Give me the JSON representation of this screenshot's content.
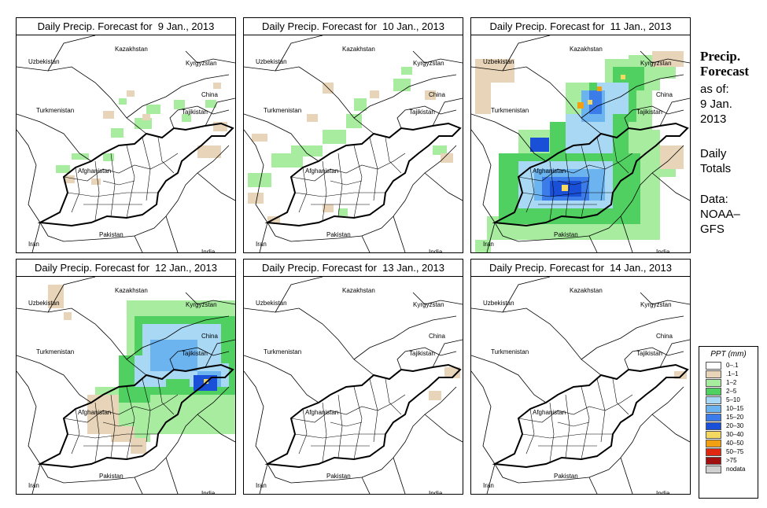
{
  "panels": [
    {
      "title": "Daily Precip. Forecast for  9 Jan., 2013",
      "intensity": [
        {
          "cls": "1-2",
          "cells": [
            [
              50,
              165,
              18,
              10
            ],
            [
              70,
              150,
              22,
              8
            ],
            [
              110,
              150,
              14,
              10
            ],
            [
              120,
              118,
              16,
              12
            ],
            [
              150,
              105,
              22,
              14
            ],
            [
              165,
              88,
              18,
              12
            ],
            [
              200,
              82,
              14,
              12
            ],
            [
              210,
              100,
              12,
              10
            ],
            [
              240,
              82,
              14,
              10
            ],
            [
              130,
              80,
              10,
              8
            ]
          ]
        },
        {
          "cls": "0.1-1",
          "cells": [
            [
              60,
              178,
              14,
              10
            ],
            [
              95,
              182,
              12,
              8
            ],
            [
              110,
              96,
              14,
              10
            ],
            [
              140,
              70,
              10,
              8
            ],
            [
              230,
              140,
              30,
              16
            ],
            [
              250,
              110,
              18,
              12
            ],
            [
              160,
              100,
              10,
              8
            ],
            [
              250,
              60,
              10,
              8
            ]
          ]
        }
      ]
    },
    {
      "title": "Daily Precip. Forecast for  10 Jan., 2013",
      "intensity": [
        {
          "cls": "1-2",
          "cells": [
            [
              5,
              175,
              30,
              18
            ],
            [
              35,
              150,
              40,
              18
            ],
            [
              60,
              140,
              40,
              14
            ],
            [
              100,
              120,
              30,
              18
            ],
            [
              130,
              100,
              20,
              18
            ],
            [
              140,
              80,
              16,
              16
            ],
            [
              190,
              55,
              22,
              16
            ],
            [
              200,
              40,
              14,
              10
            ],
            [
              240,
              140,
              18,
              12
            ],
            [
              120,
              220,
              12,
              10
            ]
          ]
        },
        {
          "cls": "0.1-1",
          "cells": [
            [
              5,
              200,
              20,
              14
            ],
            [
              10,
              125,
              20,
              10
            ],
            [
              80,
              100,
              14,
              10
            ],
            [
              100,
              60,
              14,
              14
            ],
            [
              160,
              70,
              12,
              10
            ],
            [
              230,
              70,
              14,
              12
            ],
            [
              250,
              150,
              16,
              12
            ],
            [
              30,
              230,
              16,
              10
            ],
            [
              100,
              215,
              14,
              10
            ]
          ]
        }
      ]
    },
    {
      "title": "Daily Precip. Forecast for  11 Jan., 2013",
      "intensity": [
        {
          "cls": "1-2",
          "cells": [
            [
              5,
              260,
              20,
              30
            ],
            [
              20,
              230,
              30,
              30
            ],
            [
              40,
              180,
              200,
              80
            ],
            [
              60,
              120,
              180,
              60
            ],
            [
              120,
              60,
              110,
              60
            ],
            [
              170,
              30,
              70,
              40
            ],
            [
              200,
              25,
              60,
              30
            ],
            [
              210,
              150,
              50,
              30
            ]
          ]
        },
        {
          "cls": "2-5",
          "cells": [
            [
              35,
              150,
              180,
              90
            ],
            [
              100,
              110,
              100,
              50
            ],
            [
              150,
              60,
              60,
              50
            ],
            [
              180,
              40,
              40,
              30
            ]
          ]
        },
        {
          "cls": "5-10",
          "cells": [
            [
              60,
              160,
              120,
              60
            ],
            [
              120,
              100,
              60,
              50
            ],
            [
              160,
              60,
              40,
              40
            ]
          ]
        },
        {
          "cls": "10-15",
          "cells": [
            [
              80,
              170,
              90,
              40
            ],
            [
              140,
              70,
              30,
              40
            ]
          ]
        },
        {
          "cls": "15-20",
          "cells": [
            [
              90,
              180,
              60,
              30
            ],
            [
              150,
              70,
              16,
              30
            ]
          ]
        },
        {
          "cls": "20-30",
          "cells": [
            [
              100,
              185,
              40,
              20
            ],
            [
              75,
              130,
              24,
              18
            ]
          ]
        },
        {
          "cls": "30-40",
          "cells": [
            [
              115,
              190,
              8,
              8
            ],
            [
              148,
              82,
              6,
              6
            ],
            [
              190,
              50,
              6,
              6
            ]
          ]
        },
        {
          "cls": "40-50",
          "cells": [
            [
              135,
              85,
              8,
              8
            ],
            [
              160,
              65,
              6,
              6
            ]
          ]
        },
        {
          "cls": "0.1-1",
          "cells": [
            [
              5,
              30,
              50,
              30
            ],
            [
              5,
              60,
              20,
              40
            ],
            [
              230,
              20,
              40,
              20
            ],
            [
              240,
              140,
              30,
              30
            ]
          ]
        }
      ]
    },
    {
      "title": "Daily Precip. Forecast for  12 Jan., 2013",
      "intensity": [
        {
          "cls": "1-2",
          "cells": [
            [
              100,
              140,
              70,
              60
            ],
            [
              140,
              30,
              150,
              170
            ],
            [
              130,
              170,
              40,
              40
            ],
            [
              230,
              80,
              60,
              30
            ]
          ]
        },
        {
          "cls": "2-5",
          "cells": [
            [
              150,
              50,
              130,
              100
            ],
            [
              130,
              100,
              40,
              60
            ],
            [
              220,
              100,
              60,
              50
            ]
          ]
        },
        {
          "cls": "5-10",
          "cells": [
            [
              160,
              60,
              100,
              70
            ],
            [
              150,
              100,
              40,
              40
            ],
            [
              220,
              110,
              50,
              30
            ]
          ]
        },
        {
          "cls": "10-15",
          "cells": [
            [
              170,
              80,
              60,
              40
            ],
            [
              230,
              120,
              30,
              20
            ]
          ]
        },
        {
          "cls": "20-30",
          "cells": [
            [
              225,
              125,
              30,
              20
            ]
          ]
        },
        {
          "cls": "30-40",
          "cells": [
            [
              238,
              130,
              6,
              6
            ]
          ]
        },
        {
          "cls": "0.1-1",
          "cells": [
            [
              40,
              10,
              20,
              30
            ],
            [
              90,
              150,
              40,
              50
            ],
            [
              120,
              190,
              30,
              20
            ],
            [
              145,
              205,
              20,
              20
            ],
            [
              60,
              45,
              10,
              10
            ]
          ]
        }
      ]
    },
    {
      "title": "Daily Precip. Forecast for  13 Jan., 2013",
      "intensity": [
        {
          "cls": "0.1-1",
          "cells": [
            [
              255,
              115,
              20,
              14
            ],
            [
              235,
              145,
              16,
              12
            ]
          ]
        }
      ]
    },
    {
      "title": "Daily Precip. Forecast for  14 Jan., 2013",
      "intensity": [
        {
          "cls": "0.1-1",
          "cells": [
            [
              258,
              120,
              16,
              10
            ]
          ]
        }
      ]
    }
  ],
  "map_labels": [
    "Kazakhstan",
    "Uzbekistan",
    "Kyrgyzstan",
    "China",
    "Turkmenistan",
    "Tajikistan",
    "Afghanistan",
    "Iran",
    "Pakistan",
    "India"
  ],
  "sidebar": {
    "title_line1": "Precip.",
    "title_line2": "Forecast",
    "asof_line1": "as of:",
    "asof_line2": "9 Jan.",
    "asof_line3": "2013",
    "totals_line1": "Daily",
    "totals_line2": "Totals",
    "data_line1": "Data:",
    "data_line2": "NOAA–",
    "data_line3": "GFS"
  },
  "legend": {
    "title": "PPT (mm)",
    "items": [
      {
        "label": "0–.1",
        "color": "#ffffff"
      },
      {
        "label": ".1–1",
        "color": "#e8d4b8"
      },
      {
        "label": "1–2",
        "color": "#a8eca0"
      },
      {
        "label": "2–5",
        "color": "#50d060"
      },
      {
        "label": "5–10",
        "color": "#a8d8f4"
      },
      {
        "label": "10–15",
        "color": "#6cb4f0"
      },
      {
        "label": "15–20",
        "color": "#3c7ce8"
      },
      {
        "label": "20–30",
        "color": "#1a50d8"
      },
      {
        "label": "30–40",
        "color": "#f4d860"
      },
      {
        "label": "40–50",
        "color": "#f0a010"
      },
      {
        "label": "50–75",
        "color": "#e02810"
      },
      {
        "label": ">75",
        "color": "#a01010"
      },
      {
        "label": "nodata",
        "color": "#d0d0d0"
      }
    ]
  },
  "class_colors": {
    "0.1-1": "#e8d4b8",
    "1-2": "#a8eca0",
    "2-5": "#50d060",
    "5-10": "#a8d8f4",
    "10-15": "#6cb4f0",
    "15-20": "#3c7ce8",
    "20-30": "#1a50d8",
    "30-40": "#f4d860",
    "40-50": "#f0a010"
  }
}
